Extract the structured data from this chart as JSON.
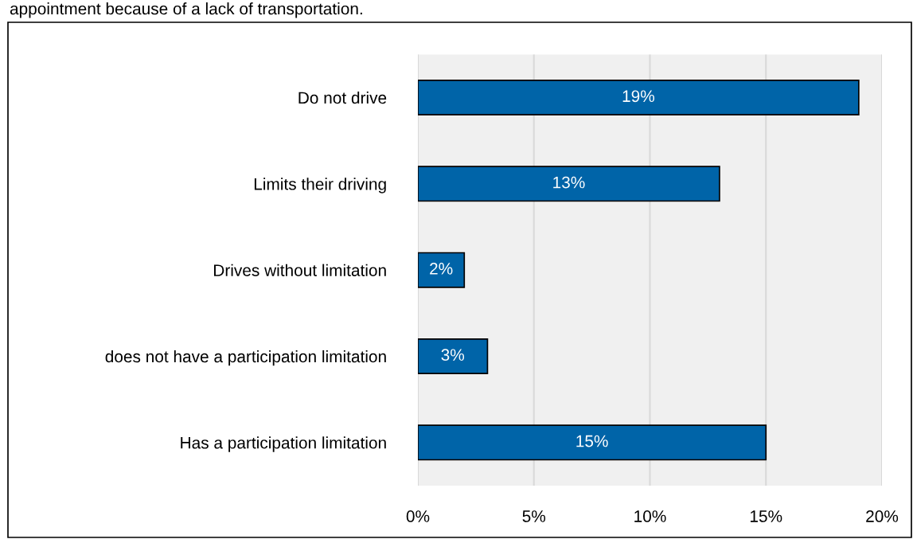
{
  "chart_data": {
    "type": "bar",
    "orientation": "horizontal",
    "title": "appointment because of a lack of transportation.",
    "categories": [
      "Do not drive",
      "Limits their driving",
      "Drives without limitation",
      "does not have a participation limitation",
      "Has a participation limitation"
    ],
    "values": [
      19,
      13,
      2,
      3,
      15
    ],
    "value_labels": [
      "19%",
      "13%",
      "2%",
      "3%",
      "15%"
    ],
    "color": "#0064a8",
    "xlim": [
      0,
      20
    ],
    "xticks": [
      {
        "value": 0,
        "label": "0%"
      },
      {
        "value": 5,
        "label": "5%"
      },
      {
        "value": 10,
        "label": "10%"
      },
      {
        "value": 15,
        "label": "15%"
      },
      {
        "value": 20,
        "label": "20%"
      }
    ],
    "grid": "x",
    "legend": false
  }
}
